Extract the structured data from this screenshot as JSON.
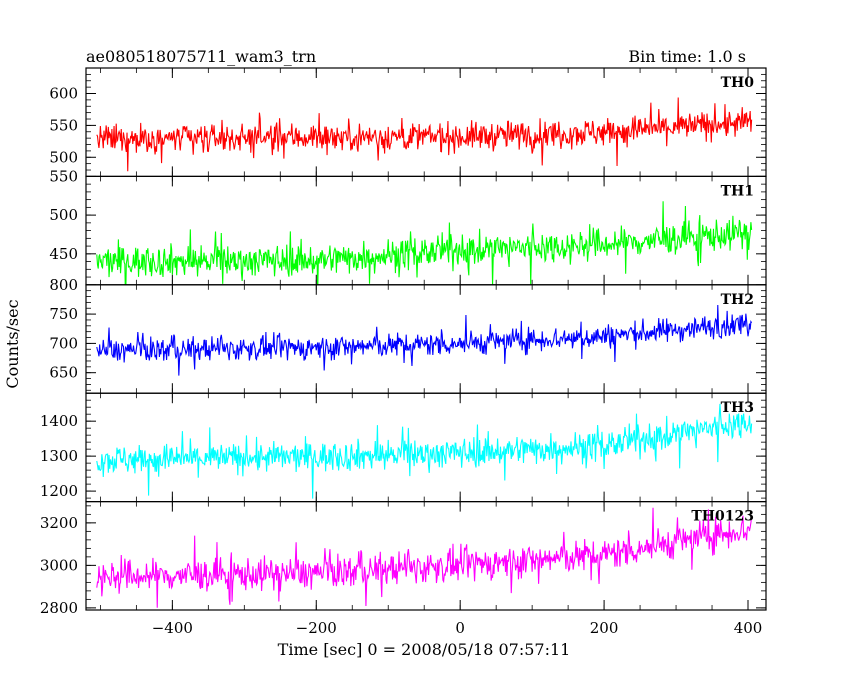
{
  "chart_data": {
    "type": "line",
    "title_left": "ae080518075711_wam3_trn",
    "title_right": "Bin time: 1.0 s",
    "xlabel": "Time [sec] 0 = 2008/05/18 07:57:11",
    "ylabel": "Counts/sec",
    "xlim": [
      -520,
      425
    ],
    "x_data_range": [
      -505,
      405
    ],
    "x_ticks": [
      -400,
      -200,
      0,
      200,
      400
    ],
    "x_tick_labels": [
      "−400",
      "−200",
      "0",
      "200",
      "400"
    ],
    "panels": [
      {
        "name": "TH0",
        "color": "#ff0000",
        "ylim": [
          470,
          640
        ],
        "y_ticks": [
          500,
          550,
          600
        ],
        "trend": [
          [
            -505,
            528
          ],
          [
            -200,
            532
          ],
          [
            0,
            532
          ],
          [
            200,
            540
          ],
          [
            405,
            555
          ]
        ],
        "noise_amplitude": 22
      },
      {
        "name": "TH1",
        "color": "#00ff00",
        "ylim": [
          410,
          550
        ],
        "y_ticks": [
          450,
          500,
          550
        ],
        "trend": [
          [
            -505,
            440
          ],
          [
            -200,
            442
          ],
          [
            0,
            455
          ],
          [
            200,
            462
          ],
          [
            405,
            478
          ]
        ],
        "noise_amplitude": 20
      },
      {
        "name": "TH2",
        "color": "#0000ff",
        "ylim": [
          615,
          800
        ],
        "y_ticks": [
          650,
          700,
          750,
          800
        ],
        "trend": [
          [
            -505,
            688
          ],
          [
            -200,
            693
          ],
          [
            0,
            700
          ],
          [
            200,
            712
          ],
          [
            405,
            735
          ]
        ],
        "noise_amplitude": 20
      },
      {
        "name": "TH3",
        "color": "#00ffff",
        "ylim": [
          1170,
          1480
        ],
        "y_ticks": [
          1200,
          1300,
          1400
        ],
        "trend": [
          [
            -505,
            1290
          ],
          [
            -200,
            1298
          ],
          [
            0,
            1310
          ],
          [
            200,
            1330
          ],
          [
            405,
            1400
          ]
        ],
        "noise_amplitude": 42
      },
      {
        "name": "TH0123",
        "color": "#ff00ff",
        "ylim": [
          2790,
          3300
        ],
        "y_ticks": [
          2800,
          3000,
          3200
        ],
        "trend": [
          [
            -505,
            2945
          ],
          [
            -200,
            2965
          ],
          [
            0,
            3000
          ],
          [
            200,
            3050
          ],
          [
            405,
            3175
          ]
        ],
        "noise_amplitude": 75
      }
    ]
  }
}
